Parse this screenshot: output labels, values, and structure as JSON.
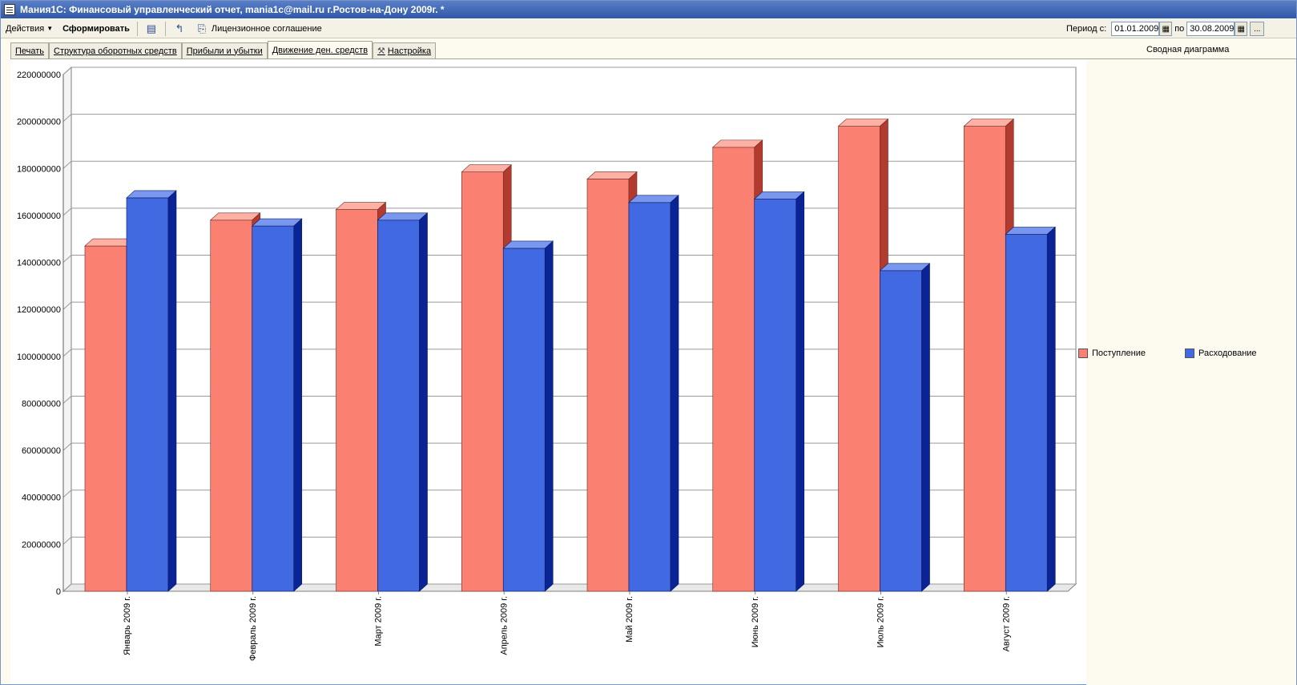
{
  "window": {
    "title": "Мания1С: Финансовый управленческий отчет, mania1c@mail.ru г.Ростов-на-Дону 2009г. *"
  },
  "toolbar": {
    "actions_label": "Действия",
    "generate_label": "Сформировать",
    "license_label": "Лицензионное соглашение",
    "period_from_label": "Период с:",
    "period_from_value": "01.01.2009",
    "period_to_label": "по",
    "period_to_value": "30.08.2009",
    "more_button": "..."
  },
  "tabs": [
    {
      "label": "Печать"
    },
    {
      "label": "Структура оборотных средств"
    },
    {
      "label": "Прибыли и убытки"
    },
    {
      "label": "Движение ден. средств",
      "active": true
    },
    {
      "label": "Настройка",
      "icon": "wrench-icon"
    }
  ],
  "chart_data": {
    "type": "bar",
    "title": "Сводная диаграмма",
    "categories": [
      "Январь 2009 г.",
      "Февраль 2009 г.",
      "Март 2009 г.",
      "Апрель 2009 г.",
      "Май 2009 г.",
      "Июнь 2009 г.",
      "Июль 2009 г.",
      "Август 2009 г."
    ],
    "series": [
      {
        "name": "Поступление",
        "color": "#fa8072",
        "values": [
          147000000,
          158000000,
          162500000,
          178500000,
          175500000,
          189000000,
          198000000,
          198000000
        ]
      },
      {
        "name": "Расходование",
        "color": "#4169e1",
        "values": [
          167500000,
          155500000,
          158000000,
          146000000,
          165500000,
          167000000,
          136500000,
          152000000
        ]
      }
    ],
    "ylim": [
      0,
      220000000
    ],
    "yticks": [
      "0",
      "20000000",
      "40000000",
      "60000000",
      "80000000",
      "100000000",
      "120000000",
      "140000000",
      "160000000",
      "180000000",
      "200000000",
      "220000000"
    ],
    "grid": true,
    "legend_position": "right",
    "three_d": true
  }
}
